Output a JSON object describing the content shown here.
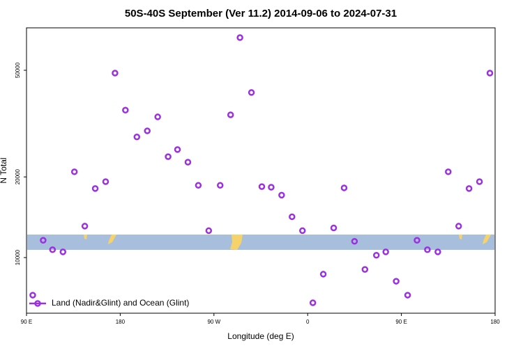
{
  "chart_data": {
    "type": "scatter",
    "title": "50S-40S September (Ver 11.2)   2014-09-06 to 2024-07-31",
    "xlabel": "Longitude (deg E)",
    "ylabel": "N Total",
    "log_y": true,
    "xlim": [
      90,
      540
    ],
    "ylim": [
      6200,
      72000
    ],
    "xticks": [
      {
        "value": 90,
        "label": "90 E"
      },
      180,
      {
        "value": 270,
        "label": "90 W"
      },
      {
        "value": 360,
        "label": "0"
      },
      {
        "value": 450,
        "label": "90 E"
      },
      {
        "value": 540,
        "label": "180"
      }
    ],
    "yticks": [
      10000,
      20000,
      50000
    ],
    "legend": "bottom-left",
    "series": [
      {
        "name": "Land (Nadir&Glint) and Ocean (Glint)",
        "color": "#9b30e0",
        "x": [
          96,
          106,
          115,
          125,
          136,
          146,
          156,
          166,
          175,
          185,
          196,
          206,
          216,
          226,
          235,
          245,
          255,
          265,
          276,
          286,
          295,
          306,
          316,
          325,
          335,
          345,
          355,
          365,
          375,
          385,
          395,
          405,
          415,
          426,
          435,
          445,
          456,
          465,
          475,
          485,
          495,
          505,
          515,
          525,
          535
        ],
        "values": [
          7240,
          11600,
          10700,
          10500,
          20900,
          13100,
          18100,
          19200,
          48800,
          35500,
          28200,
          29700,
          33500,
          23800,
          25300,
          22700,
          18600,
          12600,
          18600,
          34100,
          66200,
          41300,
          18400,
          18300,
          17100,
          14200,
          12600,
          6780,
          8670,
          12900,
          18200,
          11500,
          9030,
          10200,
          10500,
          8160,
          7240,
          11600,
          10700,
          10500,
          20900,
          13100,
          18100,
          19200,
          48800
        ]
      }
    ]
  }
}
